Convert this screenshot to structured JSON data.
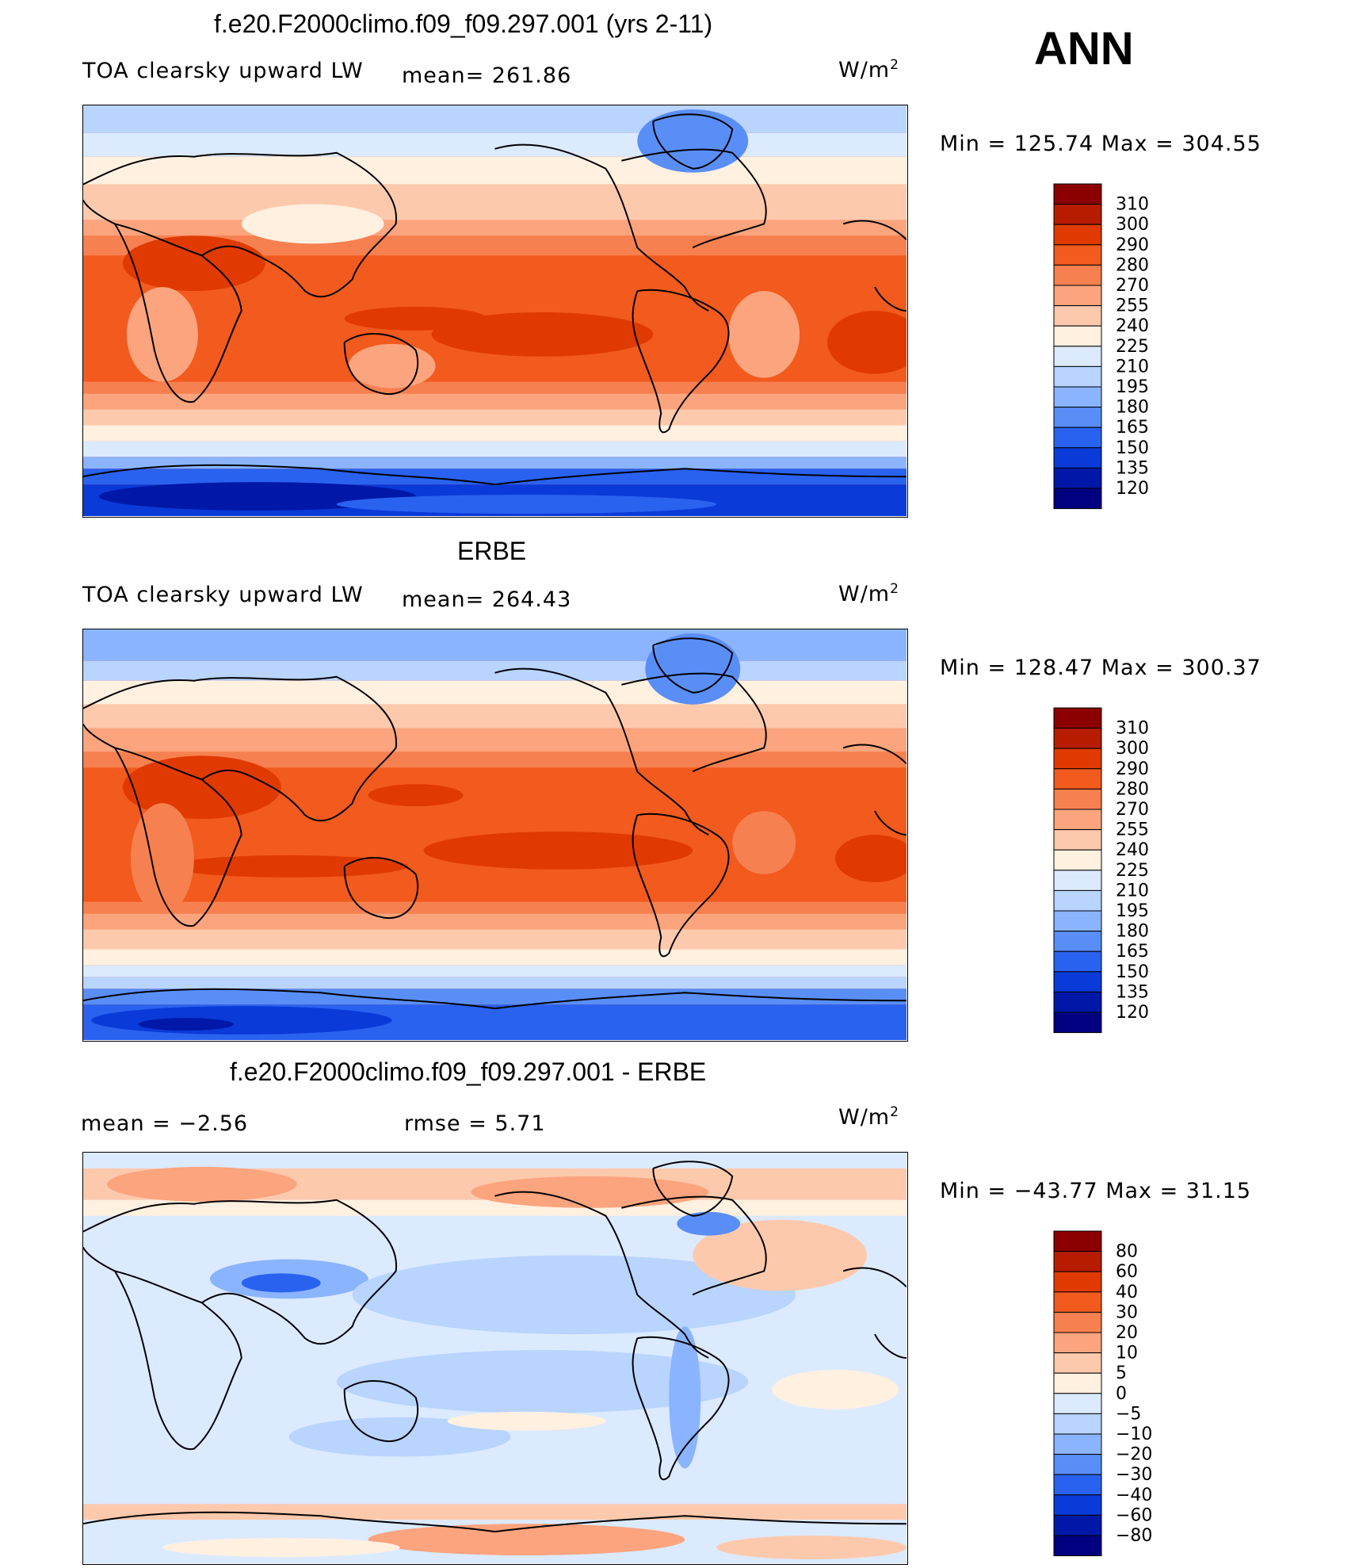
{
  "season": "ANN",
  "panels": [
    {
      "id": "model",
      "title": "f.e20.F2000climo.f09_f09.297.001 (yrs 2-11)",
      "left_label": "TOA clearsky upward LW",
      "mean_text": "mean= 261.86",
      "units_base": "W/m",
      "units_exp": "2",
      "minmax_text": "Min  =  125.74  Max  =  304.55",
      "kind": "abs"
    },
    {
      "id": "obs",
      "title": "ERBE",
      "left_label": "TOA clearsky upward LW",
      "mean_text": "mean= 264.43",
      "units_base": "W/m",
      "units_exp": "2",
      "minmax_text": "Min  =  128.47  Max  =  300.37",
      "kind": "abs"
    },
    {
      "id": "diff",
      "title": "f.e20.F2000climo.f09_f09.297.001 - ERBE",
      "left_label": "mean  =    −2.56",
      "mean_text": "rmse  =     5.71",
      "units_base": "W/m",
      "units_exp": "2",
      "minmax_text": "Min  =  −43.77  Max  =    31.15",
      "kind": "diff"
    }
  ],
  "colorbars": {
    "abs": {
      "levels": [
        "310",
        "300",
        "290",
        "280",
        "270",
        "255",
        "240",
        "225",
        "210",
        "195",
        "180",
        "165",
        "150",
        "135",
        "120"
      ],
      "colors": [
        "#8b0000",
        "#b81c00",
        "#e03a00",
        "#f25a1e",
        "#f78050",
        "#fba47e",
        "#fdc9ac",
        "#fff0e0",
        "#dbeaff",
        "#b8d4ff",
        "#8ab4ff",
        "#5a8ef7",
        "#2a62f0",
        "#0a3ad8",
        "#0018a8",
        "#000080"
      ]
    },
    "diff": {
      "levels": [
        "80",
        "60",
        "40",
        "30",
        "20",
        "10",
        "5",
        "0",
        "−5",
        "−10",
        "−20",
        "−30",
        "−40",
        "−60",
        "−80"
      ],
      "colors": [
        "#8b0000",
        "#b81c00",
        "#e03a00",
        "#f25a1e",
        "#f78050",
        "#fba47e",
        "#fdc9ac",
        "#fff0e0",
        "#dbeaff",
        "#b8d4ff",
        "#8ab4ff",
        "#5a8ef7",
        "#2a62f0",
        "#0a3ad8",
        "#0018a8",
        "#000080"
      ]
    }
  }
}
